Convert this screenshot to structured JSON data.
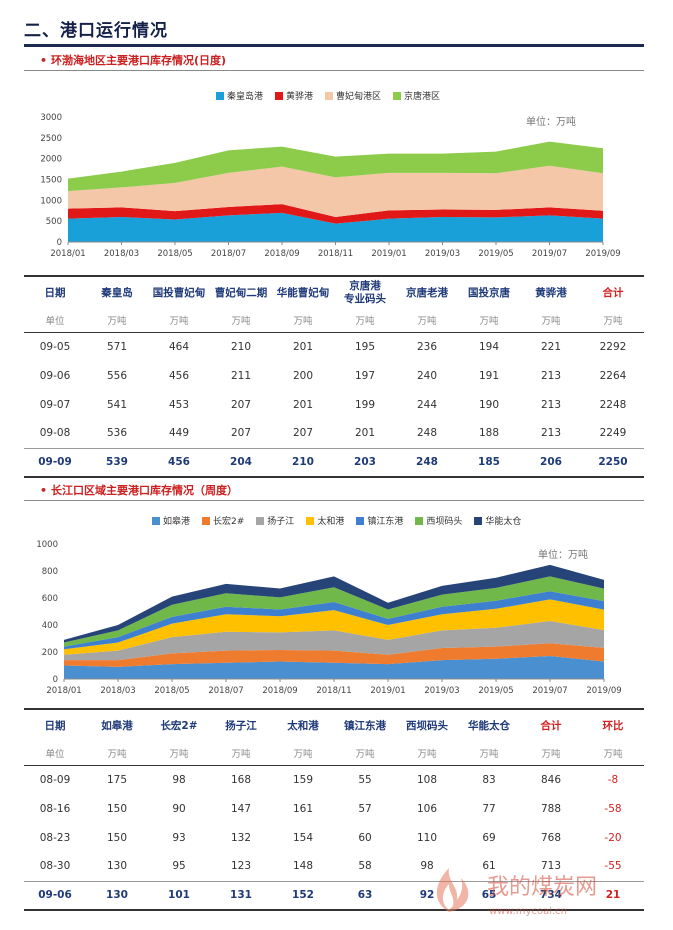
{
  "section": {
    "title": "二、港口运行情况"
  },
  "bohai": {
    "subtitle": "环渤海地区主要港口库存情况(日度)",
    "unit_label": "单位：万吨",
    "legend": [
      {
        "name": "秦皇岛港",
        "color": "#1aa0d8"
      },
      {
        "name": "黄骅港",
        "color": "#e01818"
      },
      {
        "name": "曹妃甸港区",
        "color": "#f5c7a9"
      },
      {
        "name": "京唐港区",
        "color": "#8ccc4a"
      }
    ],
    "table": {
      "headers": [
        "日期",
        "秦皇岛",
        "国投曹妃甸",
        "曹妃甸二期",
        "华能曹妃甸",
        "京唐港专业码头",
        "京唐老港",
        "国投京唐",
        "黄骅港",
        "合计"
      ],
      "header_lines": [
        [
          "日期"
        ],
        [
          "秦皇岛"
        ],
        [
          "国投曹妃甸"
        ],
        [
          "曹妃甸二期"
        ],
        [
          "华能曹妃甸"
        ],
        [
          "京唐港",
          "专业码头"
        ],
        [
          "京唐老港"
        ],
        [
          "国投京唐"
        ],
        [
          "黄骅港"
        ],
        [
          "合计"
        ]
      ],
      "units": [
        "单位",
        "万吨",
        "万吨",
        "万吨",
        "万吨",
        "万吨",
        "万吨",
        "万吨",
        "万吨",
        "万吨"
      ],
      "rows": [
        [
          "09-05",
          "571",
          "464",
          "210",
          "201",
          "195",
          "236",
          "194",
          "221",
          "2292"
        ],
        [
          "09-06",
          "556",
          "456",
          "211",
          "200",
          "197",
          "240",
          "191",
          "213",
          "2264"
        ],
        [
          "09-07",
          "541",
          "453",
          "207",
          "201",
          "199",
          "244",
          "190",
          "213",
          "2248"
        ],
        [
          "09-08",
          "536",
          "449",
          "207",
          "207",
          "201",
          "248",
          "188",
          "213",
          "2249"
        ],
        [
          "09-09",
          "539",
          "456",
          "204",
          "210",
          "203",
          "248",
          "185",
          "206",
          "2250"
        ]
      ]
    }
  },
  "yangtze": {
    "subtitle": "长江口区域主要港口库存情况（周度）",
    "unit_label": "单位：万吨",
    "legend": [
      {
        "name": "如皋港",
        "color": "#4a90d0"
      },
      {
        "name": "长宏2#",
        "color": "#ef7b2e"
      },
      {
        "name": "扬子江",
        "color": "#a5a5a5"
      },
      {
        "name": "太和港",
        "color": "#ffc000"
      },
      {
        "name": "镇江东港",
        "color": "#3e7fd0"
      },
      {
        "name": "西坝码头",
        "color": "#70b84a"
      },
      {
        "name": "华能太仓",
        "color": "#264478"
      }
    ],
    "table": {
      "headers": [
        "日期",
        "如皋港",
        "长宏2#",
        "扬子江",
        "太和港",
        "镇江东港",
        "西坝码头",
        "华能太仓",
        "合计",
        "环比"
      ],
      "units": [
        "单位",
        "万吨",
        "万吨",
        "万吨",
        "万吨",
        "万吨",
        "万吨",
        "万吨",
        "万吨",
        "万吨"
      ],
      "rows": [
        [
          "08-09",
          "175",
          "98",
          "168",
          "159",
          "55",
          "108",
          "83",
          "846",
          "-8"
        ],
        [
          "08-16",
          "150",
          "90",
          "147",
          "161",
          "57",
          "106",
          "77",
          "788",
          "-58"
        ],
        [
          "08-23",
          "150",
          "93",
          "132",
          "154",
          "60",
          "110",
          "69",
          "768",
          "-20"
        ],
        [
          "08-30",
          "130",
          "95",
          "123",
          "148",
          "58",
          "98",
          "61",
          "713",
          "-55"
        ],
        [
          "09-06",
          "130",
          "101",
          "131",
          "152",
          "63",
          "92",
          "65",
          "734",
          "21"
        ]
      ]
    }
  },
  "watermark": {
    "text": "我的煤炭网",
    "url": "www.mycoal.cn"
  },
  "chart_data": [
    {
      "type": "area",
      "stacked": true,
      "x": [
        "2018/01",
        "2018/03",
        "2018/05",
        "2018/07",
        "2018/09",
        "2018/11",
        "2019/01",
        "2019/03",
        "2019/05",
        "2019/07",
        "2019/09"
      ],
      "yticks": [
        0,
        500,
        1000,
        1500,
        2000,
        2500,
        3000
      ],
      "ylim": [
        0,
        3000
      ],
      "series": [
        {
          "name": "秦皇岛港",
          "color": "#1aa0d8",
          "values": [
            560,
            600,
            540,
            640,
            700,
            440,
            560,
            600,
            590,
            640,
            560
          ]
        },
        {
          "name": "黄骅港",
          "color": "#e01818",
          "values": [
            240,
            230,
            200,
            200,
            210,
            160,
            200,
            180,
            180,
            190,
            190
          ]
        },
        {
          "name": "曹妃甸港区",
          "color": "#f5c7a9",
          "values": [
            420,
            480,
            680,
            820,
            900,
            950,
            900,
            880,
            880,
            1000,
            900
          ]
        },
        {
          "name": "京唐港区",
          "color": "#8ccc4a",
          "values": [
            300,
            380,
            480,
            540,
            480,
            500,
            460,
            460,
            520,
            580,
            600
          ]
        }
      ]
    },
    {
      "type": "area",
      "stacked": true,
      "x": [
        "2018/01",
        "2018/03",
        "2018/05",
        "2018/07",
        "2018/09",
        "2018/11",
        "2019/01",
        "2019/03",
        "2019/05",
        "2019/07",
        "2019/09"
      ],
      "yticks": [
        0,
        200,
        400,
        600,
        800,
        1000
      ],
      "ylim": [
        0,
        1000
      ],
      "series": [
        {
          "name": "如皋港",
          "color": "#4a90d0",
          "values": [
            100,
            90,
            110,
            120,
            130,
            120,
            110,
            140,
            150,
            170,
            130
          ]
        },
        {
          "name": "长宏2#",
          "color": "#ef7b2e",
          "values": [
            40,
            50,
            80,
            90,
            85,
            90,
            70,
            90,
            90,
            95,
            101
          ]
        },
        {
          "name": "扬子江",
          "color": "#a5a5a5",
          "values": [
            40,
            70,
            120,
            140,
            130,
            150,
            110,
            130,
            140,
            165,
            131
          ]
        },
        {
          "name": "太和港",
          "color": "#ffc000",
          "values": [
            40,
            60,
            100,
            130,
            120,
            150,
            110,
            120,
            140,
            160,
            152
          ]
        },
        {
          "name": "镇江东港",
          "color": "#3e7fd0",
          "values": [
            20,
            40,
            50,
            55,
            50,
            60,
            45,
            55,
            60,
            60,
            63
          ]
        },
        {
          "name": "西坝码头",
          "color": "#70b84a",
          "values": [
            30,
            50,
            90,
            100,
            90,
            110,
            70,
            90,
            95,
            110,
            92
          ]
        },
        {
          "name": "华能太仓",
          "color": "#264478",
          "values": [
            20,
            40,
            60,
            70,
            65,
            80,
            50,
            65,
            75,
            85,
            65
          ]
        }
      ]
    }
  ]
}
